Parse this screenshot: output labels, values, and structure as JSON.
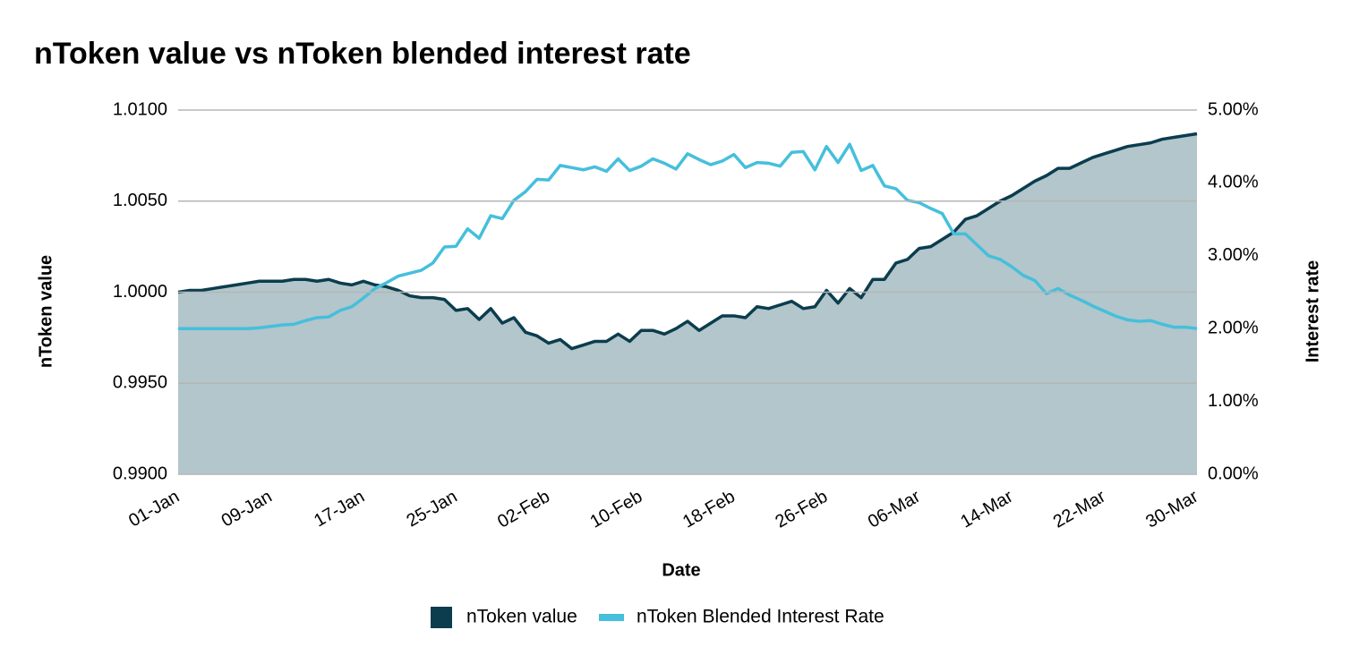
{
  "chart_data": {
    "type": "line",
    "title": "nToken value vs nToken blended interest rate",
    "x_label": "Date",
    "y_label": "nToken value",
    "y2_label": "Interest rate",
    "categories": [
      "01-Jan",
      null,
      null,
      null,
      null,
      null,
      null,
      null,
      "09-Jan",
      null,
      null,
      null,
      null,
      null,
      null,
      null,
      "17-Jan",
      null,
      null,
      null,
      null,
      null,
      null,
      null,
      "25-Jan",
      null,
      null,
      null,
      null,
      null,
      null,
      null,
      "02-Feb",
      null,
      null,
      null,
      null,
      null,
      null,
      null,
      "10-Feb",
      null,
      null,
      null,
      null,
      null,
      null,
      null,
      "18-Feb",
      null,
      null,
      null,
      null,
      null,
      null,
      null,
      "26-Feb",
      null,
      null,
      null,
      null,
      null,
      null,
      null,
      "06-Mar",
      null,
      null,
      null,
      null,
      null,
      null,
      null,
      "14-Mar",
      null,
      null,
      null,
      null,
      null,
      null,
      null,
      "22-Mar",
      null,
      null,
      null,
      null,
      null,
      null,
      null,
      "30-Mar"
    ],
    "series": [
      {
        "name": "nToken value",
        "color": "#0b3d4e",
        "area": true,
        "fill_color": "#b2c6cb",
        "values": [
          1.0,
          1.0001,
          1.0001,
          1.0002,
          1.0003,
          1.0004,
          1.0005,
          1.0006,
          1.0006,
          1.0006,
          1.0007,
          1.0007,
          1.0006,
          1.0007,
          1.0005,
          1.0004,
          1.0006,
          1.0004,
          1.0003,
          1.0001,
          0.9998,
          0.9997,
          0.9997,
          0.9996,
          0.999,
          0.9991,
          0.9985,
          0.9991,
          0.9983,
          0.9986,
          0.9978,
          0.9976,
          0.9972,
          0.9974,
          0.9969,
          0.9971,
          0.9973,
          0.9973,
          0.9977,
          0.9973,
          0.9979,
          0.9979,
          0.9977,
          0.998,
          0.9984,
          0.9979,
          0.9983,
          0.9987,
          0.9987,
          0.9986,
          0.9992,
          0.9991,
          0.9993,
          0.9995,
          0.9991,
          0.9992,
          1.0001,
          0.9994,
          1.0002,
          0.9997,
          1.0007,
          1.0007,
          1.0016,
          1.0018,
          1.0024,
          1.0025,
          1.0029,
          1.0033,
          1.004,
          1.0042,
          1.0046,
          1.005,
          1.0053,
          1.0057,
          1.0061,
          1.0064,
          1.0068,
          1.0068,
          1.0071,
          1.0074,
          1.0076,
          1.0078,
          1.008,
          1.0081,
          1.0082,
          1.0084,
          1.0085,
          1.0086,
          1.0087
        ]
      },
      {
        "name": "nToken Blended Interest Rate",
        "color": "#45bfdc",
        "axis": "y2",
        "values": [
          2.0,
          2.0,
          2.0,
          2.0,
          2.0,
          2.0,
          2.0,
          2.01,
          2.03,
          2.05,
          2.06,
          2.11,
          2.15,
          2.16,
          2.25,
          2.3,
          2.42,
          2.55,
          2.63,
          2.72,
          2.76,
          2.8,
          2.9,
          3.12,
          3.13,
          3.37,
          3.24,
          3.55,
          3.51,
          3.76,
          3.88,
          4.05,
          4.04,
          4.24,
          4.21,
          4.18,
          4.22,
          4.16,
          4.33,
          4.17,
          4.23,
          4.33,
          4.27,
          4.19,
          4.4,
          4.32,
          4.25,
          4.3,
          4.39,
          4.21,
          4.28,
          4.27,
          4.23,
          4.42,
          4.43,
          4.18,
          4.5,
          4.28,
          4.53,
          4.17,
          4.24,
          3.96,
          3.92,
          3.76,
          3.73,
          3.65,
          3.58,
          3.3,
          3.3,
          3.15,
          3.0,
          2.95,
          2.85,
          2.73,
          2.66,
          2.48,
          2.55,
          2.46,
          2.39,
          2.31,
          2.24,
          2.17,
          2.12,
          2.1,
          2.11,
          2.06,
          2.02,
          2.02,
          2.0
        ]
      }
    ],
    "ylim": [
      0.99,
      1.01
    ],
    "yticks": [
      {
        "value": 0.99,
        "label": "0.9900"
      },
      {
        "value": 0.995,
        "label": "0.9950"
      },
      {
        "value": 1,
        "label": "1.0000"
      },
      {
        "value": 1.005,
        "label": "1.0050"
      },
      {
        "value": 1.01,
        "label": "1.0100"
      }
    ],
    "y2lim": [
      0,
      5
    ],
    "y2ticks": [
      {
        "value": 0,
        "label": "0.00%"
      },
      {
        "value": 1,
        "label": "1.00%"
      },
      {
        "value": 2,
        "label": "2.00%"
      },
      {
        "value": 3,
        "label": "3.00%"
      },
      {
        "value": 4,
        "label": "4.00%"
      },
      {
        "value": 5,
        "label": "5.00%"
      }
    ],
    "grid": true,
    "legend": "bottom"
  }
}
